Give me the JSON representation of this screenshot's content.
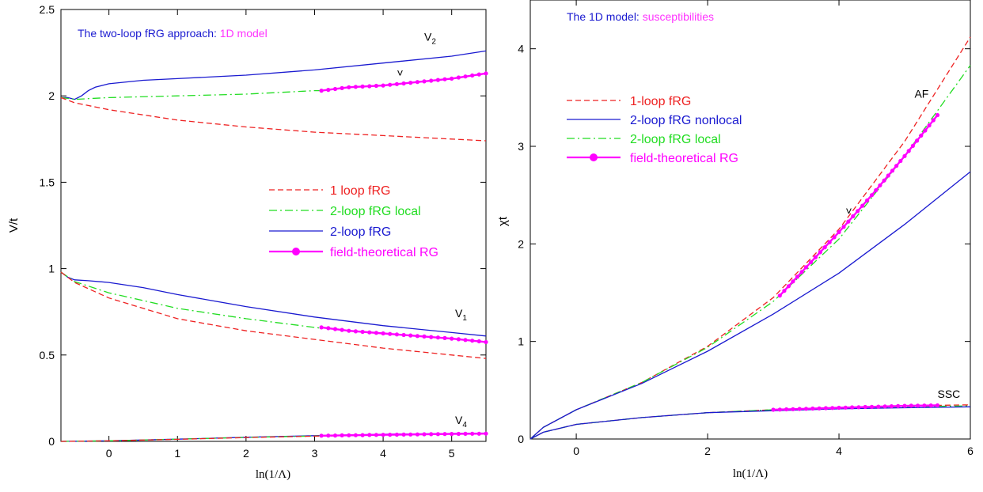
{
  "chart_data": [
    {
      "type": "line",
      "title_parts": [
        {
          "text": "The two-loop fRG approach: ",
          "color": "#1a1ad0"
        },
        {
          "text": "1D model",
          "color": "#ff33ff"
        }
      ],
      "xlabel": "ln(1/Λ)",
      "ylabel": "V/t",
      "xlim": [
        -0.7,
        5.5
      ],
      "ylim": [
        0,
        2.5
      ],
      "xticks": [
        0,
        1,
        2,
        3,
        4,
        5
      ],
      "yticks": [
        0,
        0.5,
        1,
        1.5,
        2,
        2.5
      ],
      "xtick_labels": [
        "0",
        "1",
        "2",
        "3",
        "4",
        "5"
      ],
      "ytick_labels": [
        "0",
        "0.5",
        "1",
        "1.5",
        "2",
        "2.5"
      ],
      "grid": false,
      "legend_position": "center-right",
      "legend": [
        {
          "label": "1 loop fRG",
          "color": "#ee2222",
          "style": "dashed"
        },
        {
          "label": "2-loop fRG local",
          "color": "#22dd22",
          "style": "dashdot"
        },
        {
          "label": "2-loop fRG",
          "color": "#1a1ad0",
          "style": "solid"
        },
        {
          "label": "field-theoretical RG",
          "color": "#ff00ff",
          "style": "dots"
        }
      ],
      "annotations": [
        {
          "text": "V",
          "sub": "2",
          "x": 4.6,
          "y": 2.32
        },
        {
          "text": "V",
          "sub": "1",
          "x": 5.05,
          "y": 0.72
        },
        {
          "text": "V",
          "sub": "4",
          "x": 5.05,
          "y": 0.1
        },
        {
          "text": "˅",
          "x": 4.2,
          "y": 2.11
        }
      ],
      "series": [
        {
          "group": "V2",
          "style": "solid",
          "color": "#1a1ad0",
          "x": [
            -0.7,
            -0.6,
            -0.5,
            -0.4,
            -0.3,
            -0.2,
            0,
            0.5,
            1,
            2,
            3,
            4,
            5,
            5.5
          ],
          "y": [
            1.99,
            1.99,
            1.98,
            2.0,
            2.03,
            2.05,
            2.07,
            2.09,
            2.1,
            2.12,
            2.15,
            2.19,
            2.23,
            2.26
          ]
        },
        {
          "group": "V2",
          "style": "dashdot",
          "color": "#22dd22",
          "x": [
            -0.7,
            -0.5,
            0,
            1,
            2,
            3,
            3.1
          ],
          "y": [
            1.99,
            1.98,
            1.99,
            2.0,
            2.01,
            2.03,
            2.03
          ]
        },
        {
          "group": "V2",
          "style": "dashed",
          "color": "#ee2222",
          "x": [
            -0.7,
            -0.5,
            0,
            1,
            2,
            3,
            4,
            5,
            5.5
          ],
          "y": [
            1.99,
            1.96,
            1.92,
            1.86,
            1.82,
            1.79,
            1.77,
            1.75,
            1.74
          ]
        },
        {
          "group": "V2",
          "style": "dots",
          "color": "#ff00ff",
          "x": [
            3.1,
            3.5,
            4,
            4.5,
            5,
            5.5
          ],
          "y": [
            2.03,
            2.05,
            2.06,
            2.08,
            2.1,
            2.13
          ]
        },
        {
          "group": "V1",
          "style": "solid",
          "color": "#1a1ad0",
          "x": [
            -0.7,
            -0.6,
            -0.5,
            -0.3,
            0,
            0.5,
            1,
            2,
            3,
            4,
            5,
            5.5
          ],
          "y": [
            0.98,
            0.95,
            0.935,
            0.93,
            0.92,
            0.89,
            0.85,
            0.78,
            0.72,
            0.67,
            0.63,
            0.61
          ]
        },
        {
          "group": "V1",
          "style": "dashdot",
          "color": "#22dd22",
          "x": [
            -0.7,
            -0.5,
            0,
            1,
            2,
            3,
            3.1
          ],
          "y": [
            0.98,
            0.925,
            0.86,
            0.77,
            0.71,
            0.66,
            0.655
          ]
        },
        {
          "group": "V1",
          "style": "dashed",
          "color": "#ee2222",
          "x": [
            -0.7,
            -0.5,
            0,
            1,
            2,
            3,
            4,
            5,
            5.5
          ],
          "y": [
            0.98,
            0.92,
            0.83,
            0.71,
            0.64,
            0.59,
            0.54,
            0.5,
            0.48
          ]
        },
        {
          "group": "V1",
          "style": "dots",
          "color": "#ff00ff",
          "x": [
            3.1,
            3.5,
            4,
            4.5,
            5,
            5.5
          ],
          "y": [
            0.66,
            0.64,
            0.625,
            0.61,
            0.595,
            0.575
          ]
        },
        {
          "group": "V4",
          "style": "solid",
          "color": "#1a1ad0",
          "x": [
            -0.7,
            0,
            1,
            2,
            3,
            4,
            5,
            5.5
          ],
          "y": [
            0,
            0.003,
            0.013,
            0.024,
            0.033,
            0.041,
            0.046,
            0.048
          ]
        },
        {
          "group": "V4",
          "style": "dashdot",
          "color": "#22dd22",
          "x": [
            -0.7,
            0,
            1,
            2,
            3,
            3.1
          ],
          "y": [
            0,
            0.003,
            0.013,
            0.023,
            0.031,
            0.032
          ]
        },
        {
          "group": "V4",
          "style": "dashed",
          "color": "#ee2222",
          "x": [
            -0.7,
            0,
            1,
            2,
            3,
            4,
            5,
            5.5
          ],
          "y": [
            0,
            0.003,
            0.012,
            0.022,
            0.03,
            0.037,
            0.042,
            0.044
          ]
        },
        {
          "group": "V4",
          "style": "dots",
          "color": "#ff00ff",
          "x": [
            3.1,
            4,
            5,
            5.5
          ],
          "y": [
            0.033,
            0.038,
            0.043,
            0.045
          ]
        }
      ]
    },
    {
      "type": "line",
      "title_parts": [
        {
          "text": "The 1D model: ",
          "color": "#1a1ad0"
        },
        {
          "text": "susceptibilities",
          "color": "#ff33ff"
        }
      ],
      "xlabel": "ln(1/Λ)",
      "ylabel": "χt",
      "xlim": [
        -0.7,
        6
      ],
      "ylim": [
        0,
        4.5
      ],
      "xticks": [
        0,
        2,
        4,
        6
      ],
      "yticks": [
        0,
        1,
        2,
        3,
        4
      ],
      "xtick_labels": [
        "0",
        "2",
        "4",
        "6"
      ],
      "ytick_labels": [
        "0",
        "1",
        "2",
        "3",
        "4"
      ],
      "grid": false,
      "legend_position": "upper-left",
      "legend": [
        {
          "label": "1-loop fRG",
          "color": "#ee2222",
          "style": "dashed"
        },
        {
          "label": "2-loop fRG nonlocal",
          "color": "#1a1ad0",
          "style": "solid"
        },
        {
          "label": "2-loop fRG local",
          "color": "#22dd22",
          "style": "dashdot"
        },
        {
          "label": "field-theoretical RG",
          "color": "#ff00ff",
          "style": "dots"
        }
      ],
      "annotations": [
        {
          "text": "AF",
          "x": 5.15,
          "y": 3.5
        },
        {
          "text": "SSC",
          "x": 5.5,
          "y": 0.42
        },
        {
          "text": "˅",
          "x": 4.1,
          "y": 2.3
        }
      ],
      "series": [
        {
          "group": "AF",
          "style": "dashed",
          "color": "#ee2222",
          "x": [
            -0.7,
            -0.5,
            0,
            1,
            2,
            3,
            4,
            5,
            6
          ],
          "y": [
            0.0,
            0.12,
            0.3,
            0.58,
            0.95,
            1.45,
            2.15,
            3.05,
            4.12
          ]
        },
        {
          "group": "AF",
          "style": "dashdot",
          "color": "#22dd22",
          "x": [
            -0.7,
            -0.5,
            0,
            1,
            2,
            3,
            4,
            5,
            6
          ],
          "y": [
            0.0,
            0.12,
            0.3,
            0.58,
            0.94,
            1.41,
            2.05,
            2.9,
            3.83
          ]
        },
        {
          "group": "AF",
          "style": "solid",
          "color": "#1a1ad0",
          "x": [
            -0.7,
            -0.5,
            0,
            1,
            2,
            3,
            4,
            5,
            6
          ],
          "y": [
            0.0,
            0.12,
            0.3,
            0.57,
            0.9,
            1.28,
            1.7,
            2.2,
            2.74
          ]
        },
        {
          "group": "AF",
          "style": "dots",
          "color": "#ff00ff",
          "x": [
            3.1,
            3.5,
            4,
            4.5,
            5,
            5.5
          ],
          "y": [
            1.47,
            1.76,
            2.12,
            2.5,
            2.9,
            3.32
          ]
        },
        {
          "group": "SSC",
          "style": "dashed",
          "color": "#ee2222",
          "x": [
            -0.7,
            -0.5,
            0,
            1,
            2,
            3,
            4,
            5,
            6
          ],
          "y": [
            0.0,
            0.07,
            0.15,
            0.22,
            0.27,
            0.3,
            0.32,
            0.34,
            0.35
          ]
        },
        {
          "group": "SSC",
          "style": "dashdot",
          "color": "#22dd22",
          "x": [
            -0.7,
            -0.5,
            0,
            1,
            2,
            3,
            4,
            5,
            6
          ],
          "y": [
            0.0,
            0.07,
            0.15,
            0.22,
            0.27,
            0.3,
            0.32,
            0.33,
            0.34
          ]
        },
        {
          "group": "SSC",
          "style": "solid",
          "color": "#1a1ad0",
          "x": [
            -0.7,
            -0.5,
            0,
            1,
            2,
            3,
            4,
            5,
            6
          ],
          "y": [
            0.0,
            0.07,
            0.15,
            0.22,
            0.27,
            0.29,
            0.31,
            0.32,
            0.33
          ]
        },
        {
          "group": "SSC",
          "style": "dots",
          "color": "#ff00ff",
          "x": [
            3.0,
            3.5,
            4,
            4.5,
            5,
            5.5
          ],
          "y": [
            0.3,
            0.31,
            0.32,
            0.33,
            0.34,
            0.345
          ]
        }
      ]
    }
  ]
}
